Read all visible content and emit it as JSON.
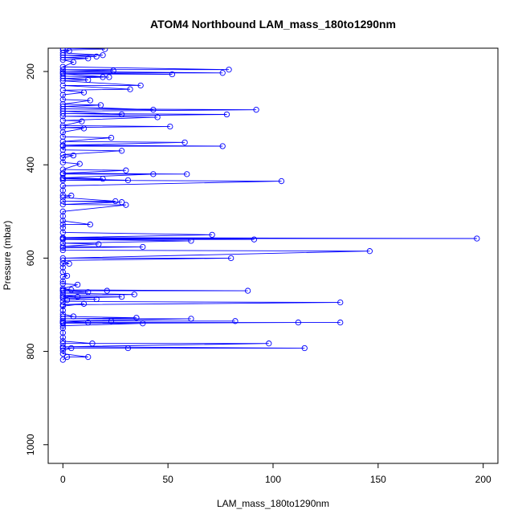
{
  "chart_data": {
    "type": "line",
    "title": "ATOM4 Northbound LAM_mass_180to1290nm",
    "xlabel": "LAM_mass_180to1290nm",
    "ylabel": "Pressure (mbar)",
    "xlim": [
      -7,
      207
    ],
    "ylim": [
      1040,
      150
    ],
    "y_reversed": true,
    "x_ticks": [
      0,
      50,
      100,
      150,
      200
    ],
    "x_tick_labels": [
      "0",
      "50",
      "100",
      "150",
      "200"
    ],
    "y_ticks": [
      200,
      400,
      600,
      800,
      1000
    ],
    "y_tick_labels": [
      "200",
      "400",
      "600",
      "800",
      "1000"
    ],
    "grid": false,
    "marker": "open-circle",
    "series": [
      {
        "color": "#0000ff",
        "points": [
          [
            0,
            818
          ],
          [
            2,
            812
          ],
          [
            12,
            812
          ],
          [
            0,
            805
          ],
          [
            0,
            798
          ],
          [
            4,
            793
          ],
          [
            31,
            793
          ],
          [
            0,
            793
          ],
          [
            115,
            793
          ],
          [
            0,
            790
          ],
          [
            98,
            783
          ],
          [
            0,
            783
          ],
          [
            14,
            783
          ],
          [
            0,
            778
          ],
          [
            0,
            770
          ],
          [
            0,
            760
          ],
          [
            0,
            750
          ],
          [
            0,
            745
          ],
          [
            38,
            740
          ],
          [
            0,
            740
          ],
          [
            112,
            738
          ],
          [
            0,
            738
          ],
          [
            132,
            738
          ],
          [
            0,
            738
          ],
          [
            12,
            738
          ],
          [
            0,
            735
          ],
          [
            23,
            735
          ],
          [
            82,
            735
          ],
          [
            0,
            735
          ],
          [
            61,
            730
          ],
          [
            0,
            730
          ],
          [
            35,
            728
          ],
          [
            0,
            725
          ],
          [
            5,
            725
          ],
          [
            0,
            720
          ],
          [
            0,
            712
          ],
          [
            0,
            703
          ],
          [
            10,
            698
          ],
          [
            0,
            700
          ],
          [
            132,
            695
          ],
          [
            0,
            693
          ],
          [
            2,
            690
          ],
          [
            16,
            688
          ],
          [
            0,
            686
          ],
          [
            28,
            683
          ],
          [
            0,
            683
          ],
          [
            7,
            683
          ],
          [
            0,
            680
          ],
          [
            34,
            678
          ],
          [
            0,
            675
          ],
          [
            12,
            673
          ],
          [
            0,
            670
          ],
          [
            21,
            670
          ],
          [
            0,
            670
          ],
          [
            88,
            670
          ],
          [
            0,
            668
          ],
          [
            4,
            668
          ],
          [
            0,
            665
          ],
          [
            7,
            657
          ],
          [
            0,
            655
          ],
          [
            0,
            650
          ],
          [
            0,
            640
          ],
          [
            2,
            638
          ],
          [
            0,
            630
          ],
          [
            0,
            620
          ],
          [
            0,
            612
          ],
          [
            3,
            612
          ],
          [
            0,
            605
          ],
          [
            80,
            600
          ],
          [
            0,
            600
          ],
          [
            146,
            585
          ],
          [
            0,
            583
          ],
          [
            0,
            578
          ],
          [
            38,
            576
          ],
          [
            0,
            575
          ],
          [
            17,
            570
          ],
          [
            0,
            568
          ],
          [
            61,
            563
          ],
          [
            0,
            560
          ],
          [
            91,
            560
          ],
          [
            0,
            558
          ],
          [
            197,
            558
          ],
          [
            0,
            556
          ],
          [
            71,
            550
          ],
          [
            0,
            545
          ],
          [
            0,
            535
          ],
          [
            0,
            528
          ],
          [
            13,
            528
          ],
          [
            0,
            520
          ],
          [
            0,
            510
          ],
          [
            0,
            500
          ],
          [
            30,
            486
          ],
          [
            0,
            485
          ],
          [
            28,
            480
          ],
          [
            0,
            478
          ],
          [
            25,
            478
          ],
          [
            0,
            470
          ],
          [
            4,
            466
          ],
          [
            0,
            465
          ],
          [
            0,
            455
          ],
          [
            0,
            445
          ],
          [
            104,
            435
          ],
          [
            0,
            433
          ],
          [
            31,
            433
          ],
          [
            0,
            430
          ],
          [
            19,
            430
          ],
          [
            0,
            428
          ],
          [
            43,
            420
          ],
          [
            0,
            420
          ],
          [
            59,
            420
          ],
          [
            0,
            418
          ],
          [
            30,
            412
          ],
          [
            0,
            410
          ],
          [
            8,
            398
          ],
          [
            0,
            395
          ],
          [
            0,
            385
          ],
          [
            5,
            380
          ],
          [
            0,
            378
          ],
          [
            28,
            370
          ],
          [
            0,
            368
          ],
          [
            0,
            360
          ],
          [
            76,
            360
          ],
          [
            0,
            358
          ],
          [
            58,
            352
          ],
          [
            0,
            350
          ],
          [
            23,
            342
          ],
          [
            0,
            340
          ],
          [
            0,
            330
          ],
          [
            10,
            322
          ],
          [
            0,
            320
          ],
          [
            51,
            318
          ],
          [
            0,
            316
          ],
          [
            9,
            307
          ],
          [
            0,
            305
          ],
          [
            45,
            298
          ],
          [
            0,
            296
          ],
          [
            78,
            292
          ],
          [
            0,
            290
          ],
          [
            28,
            292
          ],
          [
            0,
            285
          ],
          [
            92,
            282
          ],
          [
            0,
            280
          ],
          [
            43,
            282
          ],
          [
            0,
            275
          ],
          [
            18,
            272
          ],
          [
            0,
            270
          ],
          [
            13,
            262
          ],
          [
            0,
            260
          ],
          [
            0,
            250
          ],
          [
            10,
            245
          ],
          [
            0,
            240
          ],
          [
            32,
            238
          ],
          [
            0,
            230
          ],
          [
            37,
            230
          ],
          [
            0,
            220
          ],
          [
            12,
            218
          ],
          [
            0,
            215
          ],
          [
            19,
            212
          ],
          [
            0,
            210
          ],
          [
            22,
            212
          ],
          [
            0,
            205
          ],
          [
            52,
            206
          ],
          [
            0,
            203
          ],
          [
            76,
            203
          ],
          [
            0,
            200
          ],
          [
            24,
            198
          ],
          [
            0,
            196
          ],
          [
            79,
            196
          ],
          [
            0,
            190
          ],
          [
            5,
            180
          ],
          [
            0,
            175
          ],
          [
            12,
            172
          ],
          [
            0,
            170
          ],
          [
            16,
            168
          ],
          [
            0,
            165
          ],
          [
            19,
            165
          ],
          [
            0,
            160
          ],
          [
            3,
            156
          ],
          [
            0,
            154
          ],
          [
            20,
            152
          ],
          [
            0,
            150
          ]
        ]
      }
    ]
  }
}
